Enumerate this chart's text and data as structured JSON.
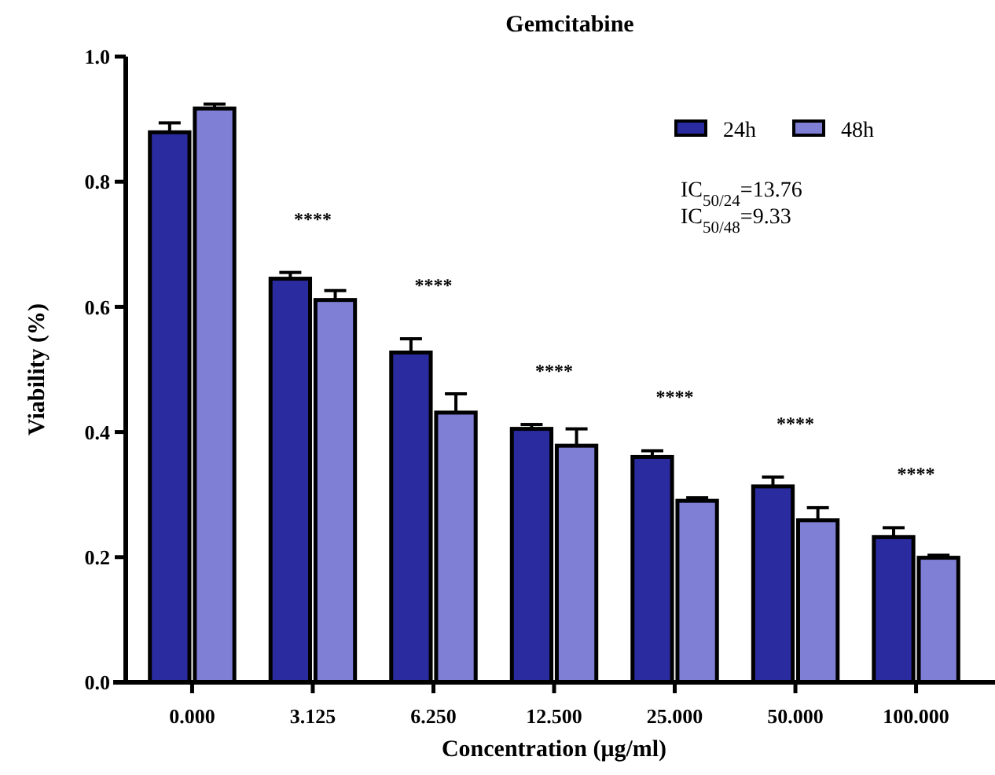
{
  "chart_data": {
    "type": "bar",
    "title": "Gemcitabine",
    "xlabel": "Concentration (μg/ml)",
    "ylabel": "Viability (%)",
    "categories": [
      "0.000",
      "3.125",
      "6.250",
      "12.500",
      "25.000",
      "50.000",
      "100.000"
    ],
    "series": [
      {
        "name": "24h",
        "color": "#2b2ba0",
        "values": [
          0.879,
          0.645,
          0.527,
          0.405,
          0.36,
          0.313,
          0.232
        ],
        "errors": [
          0.015,
          0.01,
          0.022,
          0.007,
          0.01,
          0.015,
          0.015
        ]
      },
      {
        "name": "48h",
        "color": "#7f7fd6",
        "values": [
          0.917,
          0.611,
          0.431,
          0.378,
          0.29,
          0.259,
          0.199
        ],
        "errors": [
          0.007,
          0.015,
          0.03,
          0.027,
          0.005,
          0.02,
          0.004
        ]
      }
    ],
    "ylim": [
      0,
      1
    ],
    "yticks": [
      {
        "value": 0,
        "label": "0.0"
      },
      {
        "value": 0.2,
        "label": "0.2"
      },
      {
        "value": 0.4,
        "label": "0.4"
      },
      {
        "value": 0.6,
        "label": "0.6"
      },
      {
        "value": 0.8,
        "label": "0.8"
      },
      {
        "value": 1,
        "label": "1.0"
      }
    ],
    "legend": "top right",
    "grid": false,
    "annotations": [
      "IC$_{50/24}$=13.76",
      "IC$_{50/48}$=9.33",
      "****",
      "****",
      "****",
      "****",
      "****",
      "****"
    ]
  }
}
